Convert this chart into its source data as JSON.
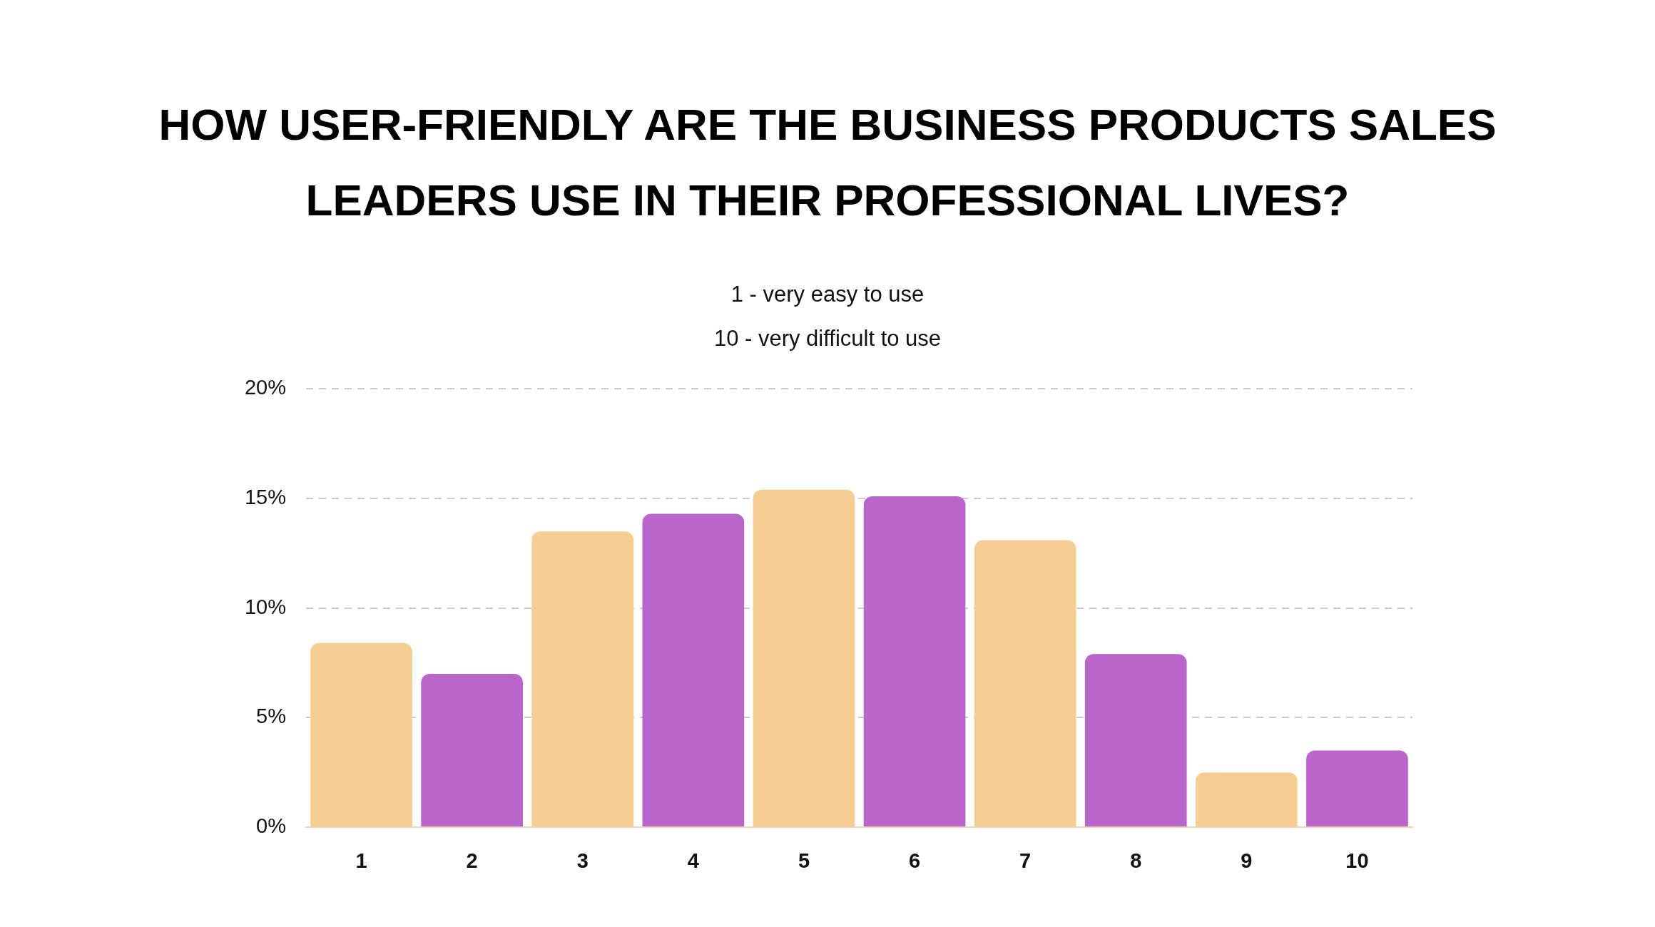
{
  "chart_data": {
    "type": "bar",
    "title": "HOW USER-FRIENDLY ARE THE BUSINESS PRODUCTS SALES LEADERS USE IN THEIR PROFESSIONAL LIVES?",
    "subtitle": "1 - very easy to use\n10 - very difficult to use",
    "categories": [
      "1",
      "2",
      "3",
      "4",
      "5",
      "6",
      "7",
      "8",
      "9",
      "10"
    ],
    "values": [
      8.4,
      7.0,
      13.5,
      14.3,
      15.4,
      15.1,
      13.1,
      7.9,
      2.5,
      3.5
    ],
    "colors": [
      "#f6ce92",
      "#b965cc",
      "#f6ce92",
      "#b965cc",
      "#f6ce92",
      "#b965cc",
      "#f6ce92",
      "#b965cc",
      "#f6ce92",
      "#b965cc"
    ],
    "ylim": [
      0,
      20
    ],
    "yticks": [
      {
        "value": 0,
        "label": "0%"
      },
      {
        "value": 5,
        "label": "5%"
      },
      {
        "value": 10,
        "label": "10%"
      },
      {
        "value": 15,
        "label": "15%"
      },
      {
        "value": 20,
        "label": "20%"
      }
    ],
    "grid": "y",
    "legend": false
  }
}
